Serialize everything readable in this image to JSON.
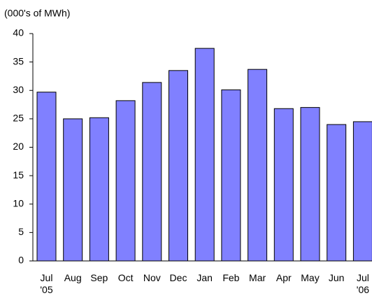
{
  "chart_data": {
    "type": "bar",
    "y_axis_label": "(000's of MWh)",
    "categories": [
      "Jul '05",
      "Aug",
      "Sep",
      "Oct",
      "Nov",
      "Dec",
      "Jan",
      "Feb",
      "Mar",
      "Apr",
      "May",
      "Jun",
      "Jul '06"
    ],
    "values": [
      29.7,
      25.0,
      25.2,
      28.2,
      31.4,
      33.5,
      37.4,
      30.1,
      33.7,
      26.8,
      27.0,
      24.0,
      24.5
    ],
    "color": "#8080ff",
    "ylim": [
      0,
      40
    ],
    "yticks": [
      0,
      5,
      10,
      15,
      20,
      25,
      30,
      35,
      40
    ],
    "grid": false
  }
}
